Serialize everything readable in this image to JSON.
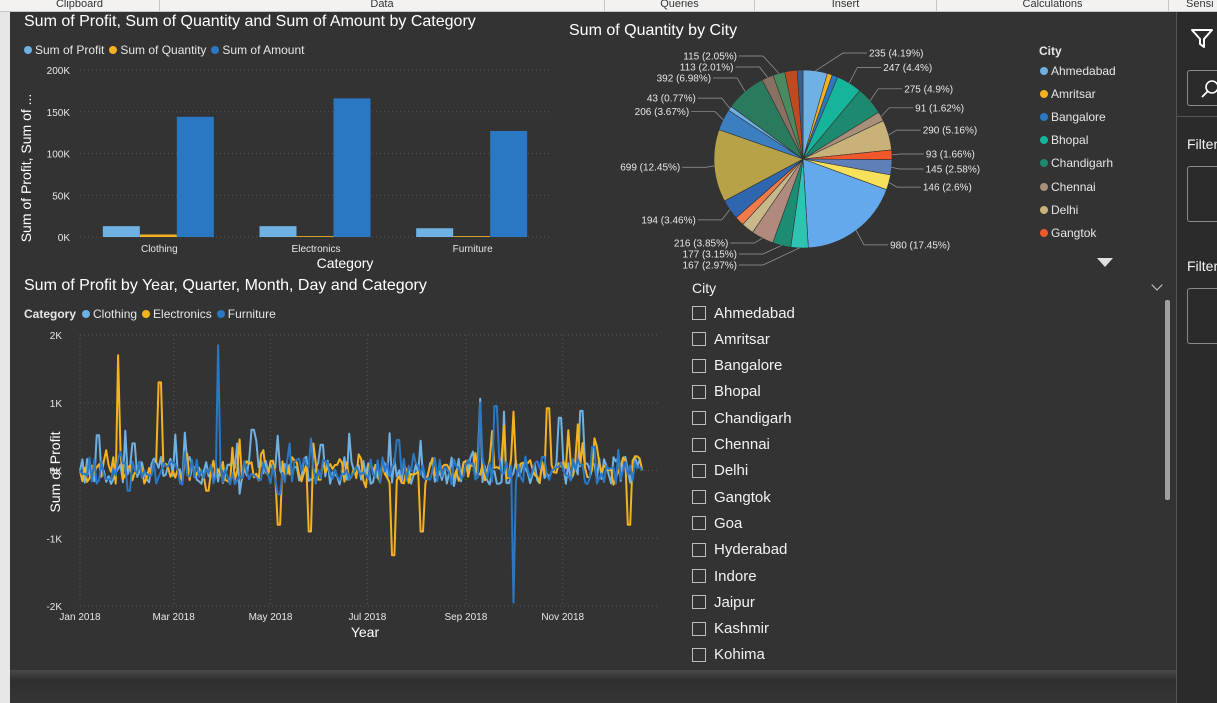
{
  "ribbon": {
    "groups": [
      "Clipboard",
      "Data",
      "Queries",
      "Insert",
      "Calculations",
      "Sensi"
    ]
  },
  "chart1": {
    "title": "Sum of Profit, Sum of Quantity and Sum of Amount by Category",
    "legend": [
      {
        "name": "Sum of Profit",
        "color": "#6fb1e3"
      },
      {
        "name": "Sum of Quantity",
        "color": "#f5b21e"
      },
      {
        "name": "Sum of Amount",
        "color": "#2a78c4"
      }
    ],
    "yaxis_title": "Sum of Profit, Sum of ...",
    "xaxis_title": "Category"
  },
  "chart2": {
    "title": "Sum of Quantity by City",
    "legend_title": "City",
    "legend_items": [
      {
        "name": "Ahmedabad",
        "color": "#6fb1e3"
      },
      {
        "name": "Amritsar",
        "color": "#f5b21e"
      },
      {
        "name": "Bangalore",
        "color": "#2a78c4"
      },
      {
        "name": "Bhopal",
        "color": "#16b49b"
      },
      {
        "name": "Chandigarh",
        "color": "#1d8a6f"
      },
      {
        "name": "Chennai",
        "color": "#a88f7a"
      },
      {
        "name": "Delhi",
        "color": "#c8b27a"
      },
      {
        "name": "Gangtok",
        "color": "#f0572a"
      }
    ],
    "more_icon": "triangle-down-icon"
  },
  "chart3": {
    "title": "Sum of Profit by Year, Quarter, Month, Day and Category",
    "legend_label": "Category",
    "legend": [
      {
        "name": "Clothing",
        "color": "#6fb1e3"
      },
      {
        "name": "Electronics",
        "color": "#f5b21e"
      },
      {
        "name": "Furniture",
        "color": "#2a78c4"
      }
    ],
    "yaxis_title": "Sum of Profit",
    "xaxis_title": "Year"
  },
  "slicer": {
    "title": "City",
    "items": [
      "Ahmedabad",
      "Amritsar",
      "Bangalore",
      "Bhopal",
      "Chandigarh",
      "Chennai",
      "Delhi",
      "Gangtok",
      "Goa",
      "Hyderabad",
      "Indore",
      "Jaipur",
      "Kashmir",
      "Kohima"
    ]
  },
  "right_pane": {
    "filter_label_1": "Filter",
    "filter_label_2": "Filter"
  },
  "chart_data": [
    {
      "type": "bar",
      "title": "Sum of Profit, Sum of Quantity and Sum of Amount by Category",
      "categories": [
        "Clothing",
        "Electronics",
        "Furniture"
      ],
      "series": [
        {
          "name": "Sum of Profit",
          "values": [
            13000,
            13000,
            10500
          ]
        },
        {
          "name": "Sum of Quantity",
          "values": [
            3000,
            1000,
            1000
          ]
        },
        {
          "name": "Sum of Amount",
          "values": [
            144000,
            166000,
            127000
          ]
        }
      ],
      "xlabel": "Category",
      "ylabel": "Sum of Profit, Sum of ...",
      "yticks": [
        "0K",
        "50K",
        "100K",
        "150K",
        "200K"
      ],
      "ylim": [
        0,
        200000
      ]
    },
    {
      "type": "pie",
      "title": "Sum of Quantity by City",
      "slices": [
        {
          "value": 235,
          "label": "235 (4.19%)",
          "color": "#6fb1e3"
        },
        {
          "value": 48,
          "label": "",
          "color": "#f5b21e"
        },
        {
          "value": 56,
          "label": "",
          "color": "#2a78c4"
        },
        {
          "value": 247,
          "label": "247 (4.4%)",
          "color": "#16b49b"
        },
        {
          "value": 275,
          "label": "275 (4.9%)",
          "color": "#1d8a6f"
        },
        {
          "value": 91,
          "label": "91 (1.62%)",
          "color": "#a88f7a"
        },
        {
          "value": 290,
          "label": "290 (5.16%)",
          "color": "#c8b27a"
        },
        {
          "value": 93,
          "label": "93 (1.66%)",
          "color": "#f0572a"
        },
        {
          "value": 145,
          "label": "145 (2.58%)",
          "color": "#5e7fb8"
        },
        {
          "value": 146,
          "label": "146 (2.6%)",
          "color": "#f7e15a"
        },
        {
          "value": 980,
          "label": "980 (17.45%)",
          "color": "#64a8ee"
        },
        {
          "value": 167,
          "label": "167 (2.97%)",
          "color": "#2fc4b2"
        },
        {
          "value": 177,
          "label": "177 (3.15%)",
          "color": "#1e8c72"
        },
        {
          "value": 216,
          "label": "216 (3.85%)",
          "color": "#b08a7c"
        },
        {
          "value": 120,
          "label": "",
          "color": "#c9b98a"
        },
        {
          "value": 90,
          "label": "",
          "color": "#f07a4a"
        },
        {
          "value": 194,
          "label": "194 (3.46%)",
          "color": "#2f66b0"
        },
        {
          "value": 699,
          "label": "699 (12.45%)",
          "color": "#b8a248"
        },
        {
          "value": 206,
          "label": "206 (3.67%)",
          "color": "#3b7fc0"
        },
        {
          "value": 43,
          "label": "43 (0.77%)",
          "color": "#6fb1e3"
        },
        {
          "value": 392,
          "label": "392 (6.98%)",
          "color": "#2a7a5e"
        },
        {
          "value": 113,
          "label": "113 (2.01%)",
          "color": "#8a7060"
        },
        {
          "value": 115,
          "label": "115 (2.05%)",
          "color": "#4a8a60"
        },
        {
          "value": 120,
          "label": "",
          "color": "#c04a20"
        },
        {
          "value": 55,
          "label": "",
          "color": "#3a5f8a"
        }
      ]
    },
    {
      "type": "line",
      "title": "Sum of Profit by Year, Quarter, Month, Day and Category",
      "xlabel": "Year",
      "ylabel": "Sum of Profit",
      "xticks": [
        "Jan 2018",
        "Mar 2018",
        "May 2018",
        "Jul 2018",
        "Sep 2018",
        "Nov 2018"
      ],
      "yticks": [
        "-2K",
        "-1K",
        "0K",
        "1K",
        "2K"
      ],
      "ylim": [
        -2000,
        2000
      ],
      "x_range": [
        "2018-01-01",
        "2018-12-31"
      ],
      "series": [
        {
          "name": "Clothing",
          "key_points": [
            [
              "2018-01-01",
              0
            ],
            [
              "2018-01-12",
              520
            ],
            [
              "2018-02-04",
              400
            ],
            [
              "2018-03-08",
              560
            ],
            [
              "2018-04-20",
              600
            ],
            [
              "2018-06-02",
              380
            ],
            [
              "2018-07-15",
              550
            ],
            [
              "2018-09-10",
              1060
            ],
            [
              "2018-09-25",
              870
            ],
            [
              "2018-10-30",
              780
            ],
            [
              "2018-11-13",
              880
            ],
            [
              "2018-12-22",
              0
            ]
          ]
        },
        {
          "name": "Electronics",
          "key_points": [
            [
              "2018-01-01",
              0
            ],
            [
              "2018-01-25",
              1700
            ],
            [
              "2018-02-20",
              1300
            ],
            [
              "2018-03-22",
              -300
            ],
            [
              "2018-05-06",
              -800
            ],
            [
              "2018-05-26",
              -900
            ],
            [
              "2018-07-17",
              -1250
            ],
            [
              "2018-08-04",
              -900
            ],
            [
              "2018-10-01",
              870
            ],
            [
              "2018-10-23",
              920
            ],
            [
              "2018-12-13",
              -800
            ],
            [
              "2018-12-22",
              0
            ]
          ]
        },
        {
          "name": "Furniture",
          "key_points": [
            [
              "2018-01-01",
              0
            ],
            [
              "2018-02-01",
              -300
            ],
            [
              "2018-03-29",
              1850
            ],
            [
              "2018-05-06",
              -350
            ],
            [
              "2018-07-20",
              450
            ],
            [
              "2018-09-10",
              1000
            ],
            [
              "2018-09-20",
              950
            ],
            [
              "2018-10-01",
              -1950
            ],
            [
              "2018-10-20",
              200
            ],
            [
              "2018-11-20",
              350
            ],
            [
              "2018-12-22",
              0
            ]
          ]
        }
      ]
    }
  ]
}
